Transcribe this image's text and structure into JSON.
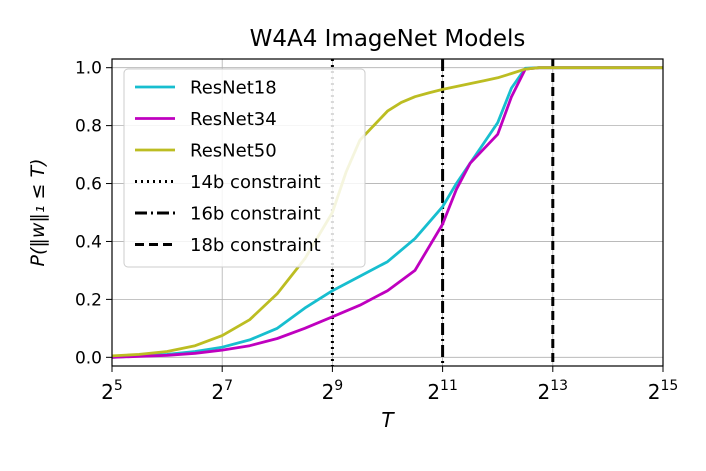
{
  "chart_data": {
    "type": "line",
    "title": "W4A4 ImageNet Models",
    "xlabel": "T",
    "ylabel": "P(‖w‖₁ ≤ T)",
    "xscale": "log2",
    "xlim": [
      32,
      32768
    ],
    "ylim": [
      -0.03,
      1.03
    ],
    "x_ticks": [
      {
        "value": 32,
        "base": "2",
        "exp": "5"
      },
      {
        "value": 128,
        "base": "2",
        "exp": "7"
      },
      {
        "value": 512,
        "base": "2",
        "exp": "9"
      },
      {
        "value": 2048,
        "base": "2",
        "exp": "11"
      },
      {
        "value": 8192,
        "base": "2",
        "exp": "13"
      },
      {
        "value": 32768,
        "base": "2",
        "exp": "15"
      }
    ],
    "y_ticks": [
      {
        "value": 0.0,
        "label": "0.0"
      },
      {
        "value": 0.2,
        "label": "0.2"
      },
      {
        "value": 0.4,
        "label": "0.4"
      },
      {
        "value": 0.6,
        "label": "0.6"
      },
      {
        "value": 0.8,
        "label": "0.8"
      },
      {
        "value": 1.0,
        "label": "1.0"
      }
    ],
    "grid": true,
    "legend_position": "upper-left",
    "series": [
      {
        "name": "ResNet18",
        "color": "#17becf",
        "x": [
          32,
          45,
          64,
          91,
          128,
          181,
          256,
          362,
          512,
          724,
          1024,
          1448,
          2048,
          2436,
          2896,
          3444,
          4096,
          4871,
          5793,
          6889,
          8192,
          16384,
          32768
        ],
        "y": [
          0.0,
          0.005,
          0.01,
          0.02,
          0.035,
          0.06,
          0.1,
          0.17,
          0.23,
          0.28,
          0.33,
          0.41,
          0.52,
          0.6,
          0.67,
          0.74,
          0.81,
          0.93,
          0.998,
          1.0,
          1.0,
          1.0,
          1.0
        ]
      },
      {
        "name": "ResNet34",
        "color": "#bf00bf",
        "x": [
          32,
          45,
          64,
          91,
          128,
          181,
          256,
          362,
          512,
          724,
          1024,
          1448,
          2048,
          2436,
          2896,
          3444,
          4096,
          4871,
          5793,
          6889,
          8192,
          16384,
          32768
        ],
        "y": [
          0.0,
          0.003,
          0.007,
          0.014,
          0.025,
          0.04,
          0.065,
          0.1,
          0.14,
          0.18,
          0.23,
          0.3,
          0.46,
          0.58,
          0.67,
          0.72,
          0.77,
          0.9,
          0.995,
          1.0,
          1.0,
          1.0,
          1.0
        ]
      },
      {
        "name": "ResNet50",
        "color": "#bcbd22",
        "x": [
          32,
          45,
          64,
          91,
          128,
          181,
          256,
          362,
          512,
          608,
          724,
          861,
          1024,
          1218,
          1448,
          1722,
          2048,
          2436,
          2896,
          3444,
          4096,
          4871,
          5793,
          6889,
          8192,
          16384,
          32768
        ],
        "y": [
          0.005,
          0.01,
          0.02,
          0.04,
          0.075,
          0.13,
          0.22,
          0.34,
          0.5,
          0.64,
          0.75,
          0.8,
          0.85,
          0.88,
          0.9,
          0.913,
          0.925,
          0.935,
          0.945,
          0.955,
          0.965,
          0.98,
          0.995,
          1.0,
          1.0,
          1.0,
          1.0
        ]
      }
    ],
    "reference_lines": [
      {
        "name": "14b constraint",
        "x": 512,
        "style": "dotted",
        "color": "#000000"
      },
      {
        "name": "16b constraint",
        "x": 2048,
        "style": "dashdot",
        "color": "#000000"
      },
      {
        "name": "18b constraint",
        "x": 8192,
        "style": "dashed",
        "color": "#000000"
      }
    ]
  }
}
